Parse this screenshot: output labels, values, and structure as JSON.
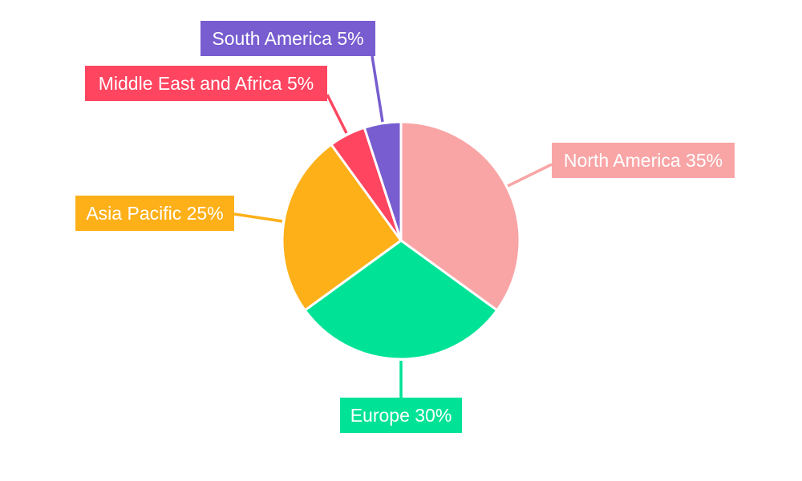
{
  "chart_data": {
    "type": "pie",
    "title": "",
    "start_angle": "12 o'clock",
    "direction": "clockwise",
    "slices": [
      {
        "label": "North America",
        "value": 35,
        "display": "North America 35%",
        "color": "#f9a5a6"
      },
      {
        "label": "Europe",
        "value": 30,
        "display": "Europe 30%",
        "color": "#00e396"
      },
      {
        "label": "Asia Pacific",
        "value": 25,
        "display": "Asia Pacific 25%",
        "color": "#feb019"
      },
      {
        "label": "Middle East and Africa",
        "value": 5,
        "display": "Middle East and Africa 5%",
        "color": "#ff4560"
      },
      {
        "label": "South America",
        "value": 5,
        "display": "South America 5%",
        "color": "#775dd0"
      }
    ]
  }
}
